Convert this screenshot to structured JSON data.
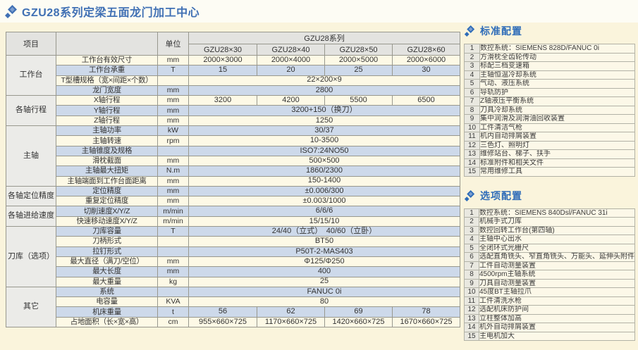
{
  "page": {
    "title": "GZU28系列定梁五面龙门加工中心",
    "accent_color": "#4070b4",
    "background_color": "#faf4dc",
    "row_cream_color": "#fdf9e6",
    "row_blue_color": "#cdd9ea"
  },
  "spec_table": {
    "header": {
      "item_col": "项目",
      "unit_col": "单位",
      "series": "GZU28系列",
      "models": [
        "GZU28×30",
        "GZU28×40",
        "GZU28×50",
        "GZU28×60"
      ]
    },
    "groups": [
      {
        "name": "工作台",
        "rows": [
          {
            "label": "工作台有效尺寸",
            "unit": "mm",
            "values": [
              "2000×3000",
              "2000×4000",
              "2000×5000",
              "2000×6000"
            ]
          },
          {
            "label": "工作台承重",
            "unit": "T",
            "values": [
              "15",
              "20",
              "25",
              "30"
            ]
          },
          {
            "label": "T型槽规格（宽×间距×个数）",
            "unit": "",
            "value": "22×200×9"
          },
          {
            "label": "龙门宽度",
            "unit": "mm",
            "value": "2800"
          }
        ]
      },
      {
        "name": "各轴行程",
        "rows": [
          {
            "label": "X轴行程",
            "unit": "mm",
            "values": [
              "3200",
              "4200",
              "5500",
              "6500"
            ]
          },
          {
            "label": "Y轴行程",
            "unit": "mm",
            "value": "3200+150（换刀）"
          },
          {
            "label": "Z轴行程",
            "unit": "mm",
            "value": "1250"
          }
        ]
      },
      {
        "name": "主轴",
        "rows": [
          {
            "label": "主轴功率",
            "unit": "kW",
            "value": "30/37"
          },
          {
            "label": "主轴转速",
            "unit": "rpm",
            "value": "10-3500"
          },
          {
            "label": "主轴锥度及规格",
            "unit": "",
            "value": "ISO7:24NO50"
          },
          {
            "label": "滑枕截面",
            "unit": "mm",
            "value": "500×500"
          },
          {
            "label": "主轴最大扭矩",
            "unit": "N.m",
            "value": "1860/2300"
          },
          {
            "label": "主轴端面到工作台面距离",
            "unit": "mm",
            "value": "150-1400"
          }
        ]
      },
      {
        "name": "各轴定位精度",
        "rows": [
          {
            "label": "定位精度",
            "unit": "mm",
            "value": "±0.006/300"
          },
          {
            "label": "重复定位精度",
            "unit": "mm",
            "value": "±0.003/1000"
          }
        ]
      },
      {
        "name": "各轴进给速度",
        "rows": [
          {
            "label": "切削速度X/Y/Z",
            "unit": "m/min",
            "value": "6/6/6"
          },
          {
            "label": "快速移动速度X/Y/Z",
            "unit": "m/min",
            "value": "15/15/10"
          }
        ]
      },
      {
        "name": "刀库（选项）",
        "rows": [
          {
            "label": "刀库容量",
            "unit": "T",
            "value": "24/40（立式）　40/60（立卧）"
          },
          {
            "label": "刀柄形式",
            "unit": "",
            "value": "BT50"
          },
          {
            "label": "拉钉形式",
            "unit": "",
            "value": "P50T-2-MAS403"
          },
          {
            "label": "最大直径（满刀/空位）",
            "unit": "mm",
            "value": "Φ125/Φ250"
          },
          {
            "label": "最大长度",
            "unit": "mm",
            "value": "400"
          },
          {
            "label": "最大重量",
            "unit": "kg",
            "value": "25"
          }
        ]
      },
      {
        "name": "其它",
        "rows": [
          {
            "label": "系统",
            "unit": "",
            "value": "FANUC 0i"
          },
          {
            "label": "电容量",
            "unit": "KVA",
            "value": "80"
          },
          {
            "label": "机床重量",
            "unit": "t",
            "values": [
              "56",
              "62",
              "69",
              "78"
            ]
          },
          {
            "label": "占地面积（长×宽×高）",
            "unit": "cm",
            "values": [
              "955×660×725",
              "1170×660×725",
              "1420×660×725",
              "1670×660×725"
            ]
          }
        ]
      }
    ]
  },
  "standard_config": {
    "title": "标准配置",
    "items": [
      "数控系统：SIEMENS 828D/FANUC 0i",
      "方滑枕全齿轮传动",
      "标配三档变速箱",
      "主轴恒温冷却系统",
      "气动、液压系统",
      "导轨防护",
      "Z轴液压平衡系统",
      "刀具冷却系统",
      "集中润滑及润滑油回收装置",
      "工件清洁气枪",
      "机内自动排屑装置",
      "三色灯、照明灯",
      "维修站台、梯子、扶手",
      "标准附件和相关文件",
      "常用维修工具"
    ]
  },
  "optional_config": {
    "title": "选项配置",
    "items": [
      "数控系统：SIEMENS 840Dsl/FANUC 31i",
      "机械手式刀库",
      "数控回转工作台(第四轴)",
      "主轴中心出水",
      "全闭环式光栅尺",
      "选配直角铣头、窄直角铣头、万能头、延伸头附件",
      "工件自动测量装置",
      "4500rpm主轴系统",
      "刀具自动测量装置",
      "45度BT主轴拉爪",
      "工件清洗水枪",
      "选配机床防护间",
      "立柱整体加高",
      "机外自动排屑装置",
      "主电机加大"
    ]
  }
}
